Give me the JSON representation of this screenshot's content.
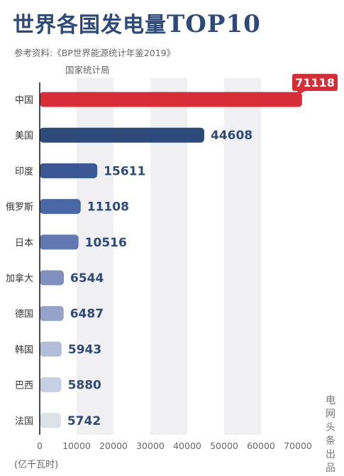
{
  "header": {
    "title_cn": "世界各国发电量",
    "title_latin": "TOP10",
    "source_line1": "参考资料:《BP世界能源统计年鉴2019》",
    "source_line2": "国家统计局"
  },
  "watermark": "电网头条出品",
  "chart_data": {
    "type": "bar",
    "orientation": "horizontal",
    "title": "世界各国发电量TOP10",
    "categories": [
      "中国",
      "美国",
      "印度",
      "俄罗斯",
      "日本",
      "加拿大",
      "德国",
      "韩国",
      "巴西",
      "法国"
    ],
    "values": [
      71118,
      44608,
      15611,
      11108,
      10516,
      6544,
      6487,
      5943,
      5880,
      5742
    ],
    "unit_label": "(亿千瓦时)",
    "xlim": [
      0,
      70000
    ],
    "xticks": [
      0,
      10000,
      20000,
      30000,
      40000,
      50000,
      60000,
      70000
    ],
    "highlight_category": "中国",
    "colors": {
      "highlight": "#d62d36",
      "bars": [
        "#d62d36",
        "#2e4a7a",
        "#3a5894",
        "#4a68a6",
        "#6379b3",
        "#7f90c0",
        "#95a3cb",
        "#b2bdd9",
        "#c6cfe4",
        "#dde1e8"
      ],
      "value_text": "#2e4a7a",
      "band": "#f0f0f2"
    }
  }
}
